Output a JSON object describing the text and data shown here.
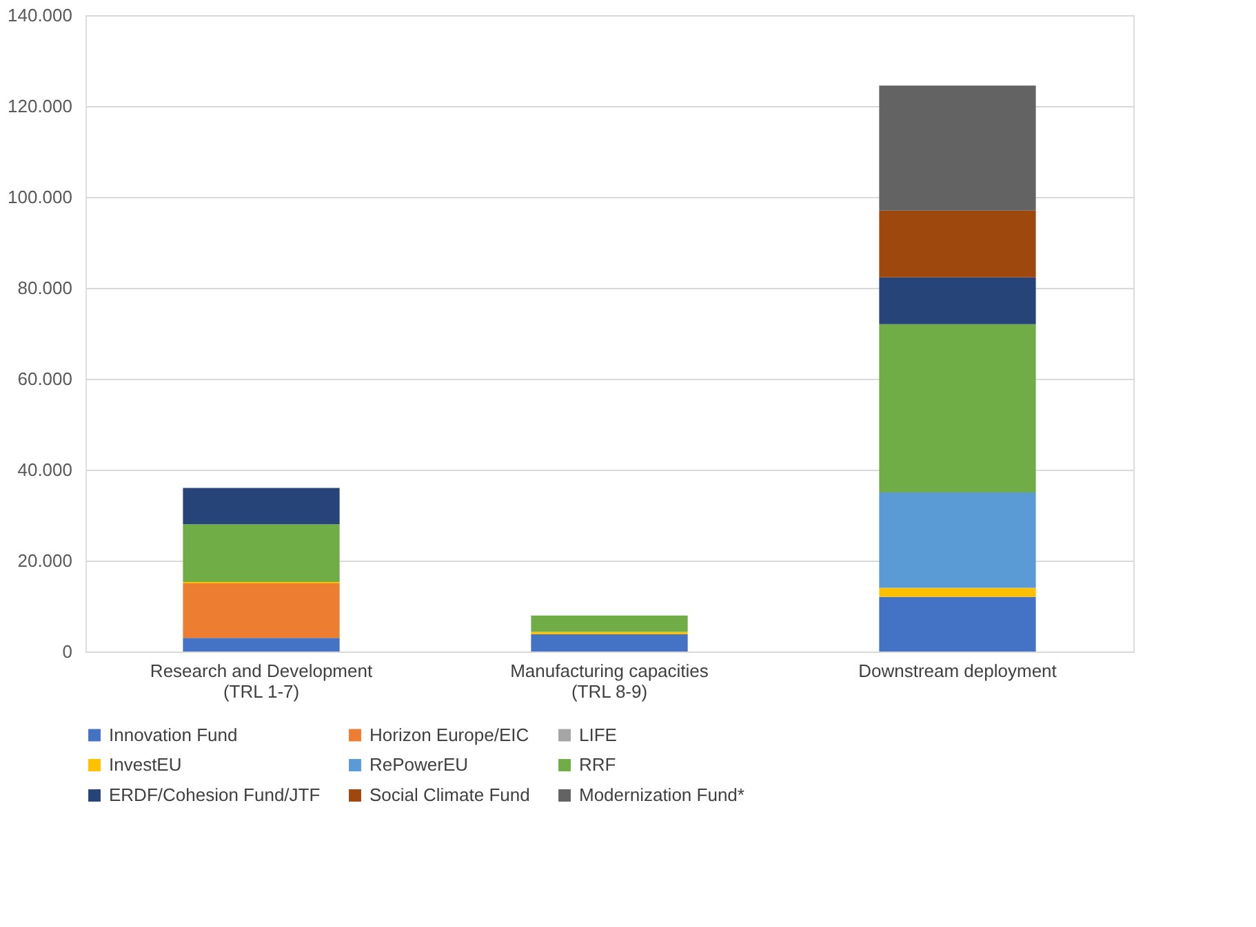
{
  "chart_data": {
    "type": "bar",
    "stacked": true,
    "grid": "y",
    "legend": "bottom",
    "categories": [
      "Research and Development\n(TRL 1-7)",
      "Manufacturing capacities\n(TRL 8-9)",
      "Downstream deployment"
    ],
    "ylim": [
      0,
      140000
    ],
    "yticks": [
      0,
      {
        "value": 20000,
        "label": "20.000"
      },
      {
        "value": 40000,
        "label": "40.000"
      },
      {
        "value": 60000,
        "label": "60.000"
      },
      {
        "value": 80000,
        "label": "80.000"
      },
      {
        "value": 100000,
        "label": "100.000"
      },
      {
        "value": 120000,
        "label": "120.000"
      },
      {
        "value": 140000,
        "label": "140.000"
      }
    ],
    "series": [
      {
        "name": "Innovation Fund",
        "color": "#4472c4",
        "values": [
          3000,
          3800,
          12000
        ]
      },
      {
        "name": "Horizon Europe/EIC",
        "color": "#ed7d31",
        "values": [
          12000,
          null,
          null
        ]
      },
      {
        "name": "LIFE",
        "color": "#a5a5a5",
        "values": [
          null,
          null,
          null
        ]
      },
      {
        "name": "InvestEU",
        "color": "#ffc000",
        "values": [
          300,
          500,
          2000
        ]
      },
      {
        "name": "RePowerEU",
        "color": "#5b9bd5",
        "values": [
          null,
          null,
          21000
        ]
      },
      {
        "name": "RRF",
        "color": "#70ad47",
        "values": [
          12700,
          3600,
          37000
        ]
      },
      {
        "name": "ERDF/Cohesion Fund/JTF",
        "color": "#264478",
        "values": [
          8000,
          null,
          10300
        ]
      },
      {
        "name": "Social Climate Fund",
        "color": "#9e480e",
        "values": [
          null,
          null,
          14700
        ]
      },
      {
        "name": "Modernization Fund*",
        "color": "#636363",
        "values": [
          null,
          null,
          27500
        ]
      }
    ]
  }
}
